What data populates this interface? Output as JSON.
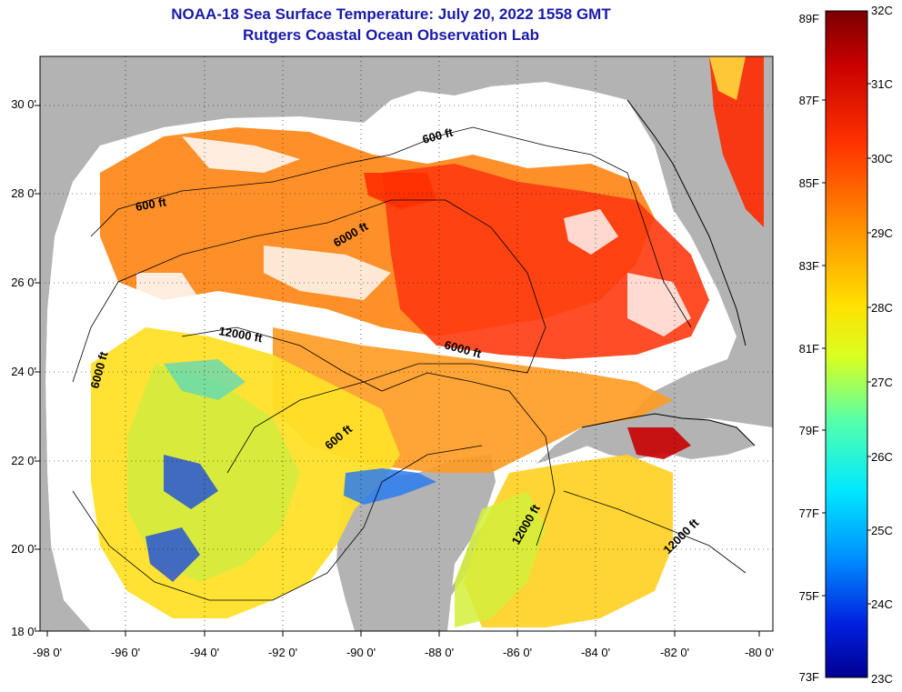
{
  "title": {
    "line1": "NOAA-18 Sea Surface Temperature:  July 20, 2022 1558 GMT",
    "line2": "Rutgers Coastal Ocean Observation Lab"
  },
  "axes": {
    "lat_labels": [
      "30 0'",
      "28 0'",
      "26 0'",
      "24 0'",
      "22 0'",
      "20 0'",
      "18 0'"
    ],
    "lon_labels": [
      "-98 0'",
      "-96 0'",
      "-94 0'",
      "-92 0'",
      "-90 0'",
      "-88 0'",
      "-86 0'",
      "-84 0'",
      "-82 0'",
      "-80 0'"
    ]
  },
  "contours": {
    "labels": [
      "600 ft",
      "600 ft",
      "6000 ft",
      "12000 ft",
      "6000 ft",
      "6000 ft",
      "600 ft",
      "12000 ft",
      "12000 ft"
    ]
  },
  "colorbar": {
    "f_labels": [
      "89F",
      "87F",
      "85F",
      "83F",
      "81F",
      "79F",
      "77F",
      "75F",
      "73F"
    ],
    "c_labels": [
      "32C",
      "31C",
      "30C",
      "29C",
      "28C",
      "27C",
      "26C",
      "25C",
      "24C",
      "23C"
    ]
  },
  "colors": {
    "land": "#b3b3b3",
    "cloud": "#ffffff",
    "title": "#1a1aa8"
  }
}
